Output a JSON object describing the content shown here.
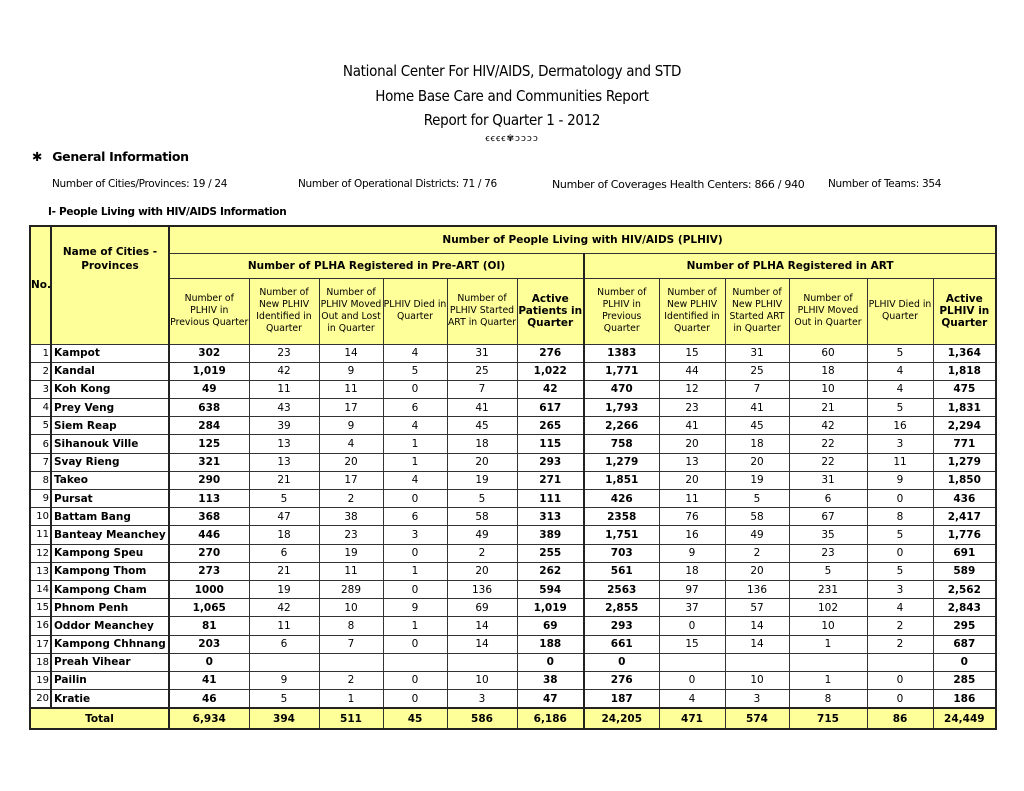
{
  "header": {
    "title1": "National Center For HIV/AIDS, Dermatology and STD",
    "title2": "Home Base Care and Communities Report",
    "title3": "Report  for Quarter 1 - 2012"
  },
  "general": {
    "heading": "General Information",
    "cities": "Number of Cities/Provinces: 19 / 24",
    "districts": "Number of Operational Districts: 71 / 76",
    "health_centers": "Number of Coverages Health Centers: 866 / 940",
    "teams": "Number of Teams: 354"
  },
  "section_title": "I- People Living with HIV/AIDS Information",
  "table": {
    "col_no": "No.",
    "col_name": "Name of Cities - Provinces",
    "group_title": "Number of People Living with HIV/AIDS (PLHIV)",
    "preart_title": "Number of PLHA Registered in Pre-ART (OI)",
    "art_title": "Number of PLHA Registered in ART",
    "preart_cols": [
      "Number of PLHIV in Previous Quarter",
      "Number of New PLHIV Identified in Quarter",
      "Number of PLHIV Moved Out and Lost in Quarter",
      "PLHIV Died in Quarter",
      "Number of PLHIV Started ART in Quarter",
      "Active Patients in Quarter"
    ],
    "art_cols": [
      "Number of PLHIV in Previous Quarter",
      "Number of New PLHIV Identified in Quarter",
      "Number of New PLHIV Started ART in Quarter",
      "Number of PLHIV Moved Out in Quarter",
      "PLHIV Died in Quarter",
      "Active PLHIV in Quarter"
    ],
    "rows": [
      [
        "1",
        "Kampot",
        "302",
        "23",
        "14",
        "4",
        "31",
        "276",
        "1383",
        "15",
        "31",
        "60",
        "5",
        "1,364"
      ],
      [
        "2",
        "Kandal",
        "1,019",
        "42",
        "9",
        "5",
        "25",
        "1,022",
        "1,771",
        "44",
        "25",
        "18",
        "4",
        "1,818"
      ],
      [
        "3",
        "Koh Kong",
        "49",
        "11",
        "11",
        "0",
        "7",
        "42",
        "470",
        "12",
        "7",
        "10",
        "4",
        "475"
      ],
      [
        "4",
        "Prey Veng",
        "638",
        "43",
        "17",
        "6",
        "41",
        "617",
        "1,793",
        "23",
        "41",
        "21",
        "5",
        "1,831"
      ],
      [
        "5",
        "Siem Reap",
        "284",
        "39",
        "9",
        "4",
        "45",
        "265",
        "2,266",
        "41",
        "45",
        "42",
        "16",
        "2,294"
      ],
      [
        "6",
        "Sihanouk Ville",
        "125",
        "13",
        "4",
        "1",
        "18",
        "115",
        "758",
        "20",
        "18",
        "22",
        "3",
        "771"
      ],
      [
        "7",
        "Svay Rieng",
        "321",
        "13",
        "20",
        "1",
        "20",
        "293",
        "1,279",
        "13",
        "20",
        "22",
        "11",
        "1,279"
      ],
      [
        "8",
        "Takeo",
        "290",
        "21",
        "17",
        "4",
        "19",
        "271",
        "1,851",
        "20",
        "19",
        "31",
        "9",
        "1,850"
      ],
      [
        "9",
        "Pursat",
        "113",
        "5",
        "2",
        "0",
        "5",
        "111",
        "426",
        "11",
        "5",
        "6",
        "0",
        "436"
      ],
      [
        "10",
        "Battam Bang",
        "368",
        "47",
        "38",
        "6",
        "58",
        "313",
        "2358",
        "76",
        "58",
        "67",
        "8",
        "2,417"
      ],
      [
        "11",
        "Banteay Meanchey",
        "446",
        "18",
        "23",
        "3",
        "49",
        "389",
        "1,751",
        "16",
        "49",
        "35",
        "5",
        "1,776"
      ],
      [
        "12",
        "Kampong Speu",
        "270",
        "6",
        "19",
        "0",
        "2",
        "255",
        "703",
        "9",
        "2",
        "23",
        "0",
        "691"
      ],
      [
        "13",
        "Kampong Thom",
        "273",
        "21",
        "11",
        "1",
        "20",
        "262",
        "561",
        "18",
        "20",
        "5",
        "5",
        "589"
      ],
      [
        "14",
        "Kampong Cham",
        "1000",
        "19",
        "289",
        "0",
        "136",
        "594",
        "2563",
        "97",
        "136",
        "231",
        "3",
        "2,562"
      ],
      [
        "15",
        "Phnom Penh",
        "1,065",
        "42",
        "10",
        "9",
        "69",
        "1,019",
        "2,855",
        "37",
        "57",
        "102",
        "4",
        "2,843"
      ],
      [
        "16",
        "Oddor Meanchey",
        "81",
        "11",
        "8",
        "1",
        "14",
        "69",
        "293",
        "0",
        "14",
        "10",
        "2",
        "295"
      ],
      [
        "17",
        "Kampong Chhnang",
        "203",
        "6",
        "7",
        "0",
        "14",
        "188",
        "661",
        "15",
        "14",
        "1",
        "2",
        "687"
      ],
      [
        "18",
        "Preah Vihear",
        "0",
        "",
        "",
        "",
        "",
        "0",
        "0",
        "",
        "",
        "",
        "",
        "0"
      ],
      [
        "19",
        "Pailin",
        "41",
        "9",
        "2",
        "0",
        "10",
        "38",
        "276",
        "0",
        "10",
        "1",
        "0",
        "285"
      ],
      [
        "20",
        "Kratie",
        "46",
        "5",
        "1",
        "0",
        "3",
        "47",
        "187",
        "4",
        "3",
        "8",
        "0",
        "186"
      ]
    ],
    "total_label": "Total",
    "totals": [
      "6,934",
      "394",
      "511",
      "45",
      "586",
      "6,186",
      "24,205",
      "471",
      "574",
      "715",
      "86",
      "24,449"
    ]
  },
  "colors": {
    "header_fill": "#ffff99",
    "border": "#222222"
  }
}
